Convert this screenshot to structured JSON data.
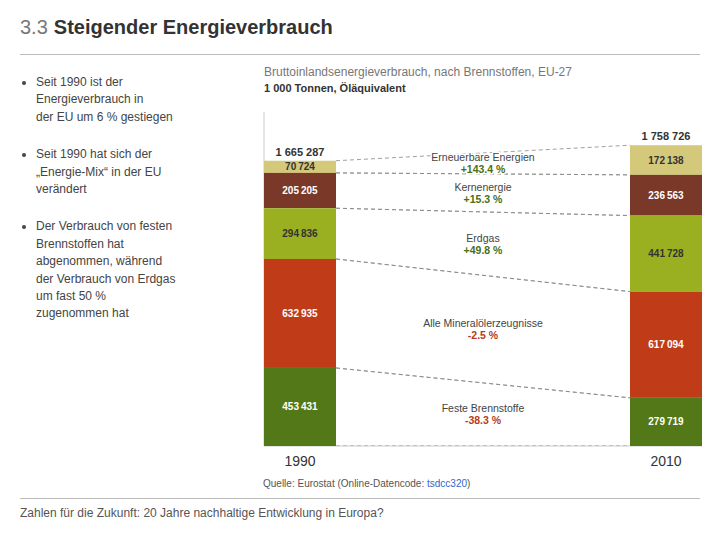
{
  "chart_data": {
    "type": "bar",
    "stacked": true,
    "data_labels": true,
    "tick_labels": "x",
    "title": "Bruttoinlandsenergieverbrauch, nach Brennstoffen, EU-27",
    "subtitle": "1 000 Tonnen, Öläquivalent",
    "categories": [
      "1990",
      "2010"
    ],
    "ylim": [
      0,
      1940200
    ],
    "series": [
      {
        "name": "Erneuerbare Energien",
        "color": "#d4c87a",
        "values": [
          70724,
          172138
        ],
        "value_labels": [
          "70 724",
          "172 138"
        ],
        "change": {
          "value": 143.4,
          "label": "+143.4 %"
        }
      },
      {
        "name": "Kernenergie",
        "color": "#7a3828",
        "values": [
          205205,
          236563
        ],
        "value_labels": [
          "205 205",
          "236 563"
        ],
        "change": {
          "value": 15.3,
          "label": "+15.3 %"
        }
      },
      {
        "name": "Erdgas",
        "color": "#9ab020",
        "values": [
          294836,
          441728
        ],
        "value_labels": [
          "294 836",
          "441 728"
        ],
        "change": {
          "value": 49.8,
          "label": "+49.8 %"
        }
      },
      {
        "name": "Alle Mineralölerzeugnisse",
        "color": "#c03c18",
        "values": [
          632935,
          617094
        ],
        "value_labels": [
          "632 935",
          "617 094"
        ],
        "change": {
          "value": -2.5,
          "label": "-2.5 %"
        }
      },
      {
        "name": "Feste Brennstoffe",
        "color": "#527818",
        "values": [
          453431,
          279719
        ],
        "value_labels": [
          "453 431",
          "279 719"
        ],
        "change": {
          "value": -38.3,
          "label": "-38.3 %"
        }
      }
    ],
    "change_colors": {
      "positive": "#4a6e18",
      "negative": "#b83a18"
    },
    "totals": [
      {
        "value": 1665287,
        "label": "1 665 287"
      },
      {
        "value": 1758726,
        "label": "1 758 726"
      }
    ]
  },
  "page": {
    "title_prefix": "3.3",
    "title": "Steigender Energieverbrauch",
    "bullets": [
      "Seit 1990 ist der\nEnergieverbrauch in\nder EU um 6 % gestiegen",
      "Seit 1990 hat sich der\n„Energie-Mix“ in der EU\nverändert",
      "Der Verbrauch von festen\nBrennstoffen hat\nabgenommen, während\nder Verbrauch von Erdgas\num fast 50 %\nzugenommen hat"
    ],
    "source": "Quelle: Eurostat (Online-Datencode: tsdcc320)",
    "source_link": "tsdcc320",
    "footer": "Zahlen für die Zukunft: 20 Jahre nachhaltige Entwicklung in Europa?"
  }
}
